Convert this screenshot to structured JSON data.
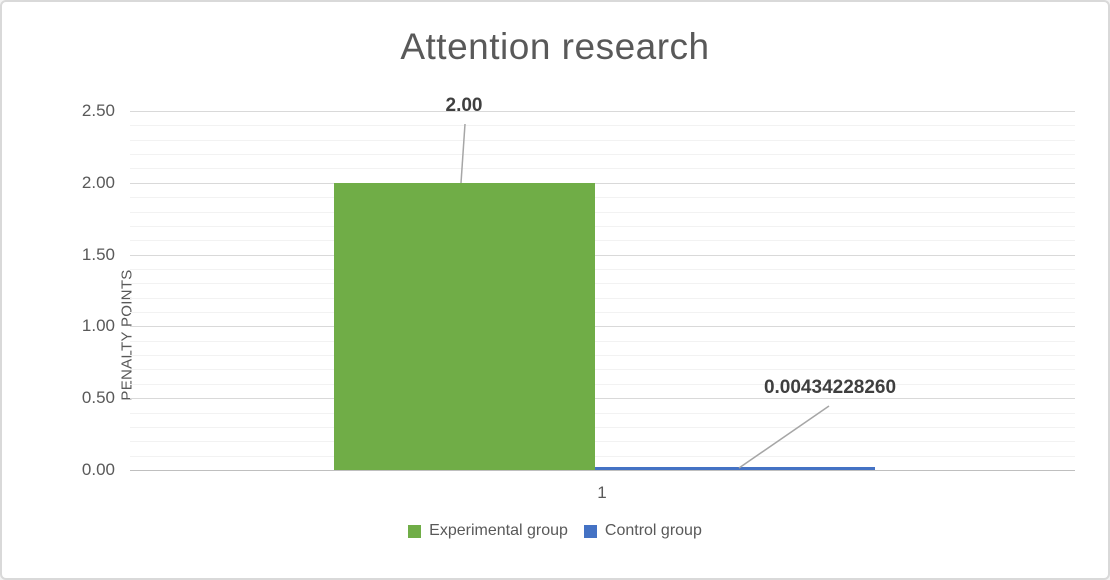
{
  "chart_data": {
    "type": "bar",
    "title": "Attention research",
    "categories": [
      "1"
    ],
    "series": [
      {
        "name": "Experimental group",
        "values": [
          2.0
        ],
        "data_label": "2.00",
        "color": "#70AD47"
      },
      {
        "name": "Control group",
        "values": [
          0.0043422826
        ],
        "data_label": "0.00434228260",
        "color": "#4472C4"
      }
    ],
    "xlabel": "",
    "ylabel": "PENALTY POINTS",
    "ylim": [
      0,
      2.5
    ],
    "y_major_unit": 0.5,
    "y_minor_unit": 0.1,
    "y_tick_labels": [
      "0.00",
      "0.50",
      "1.00",
      "1.50",
      "2.00",
      "2.50"
    ],
    "grid": "horizontal major+minor",
    "legend_position": "bottom",
    "colors": {
      "title_text": "#595959",
      "axis_text": "#595959",
      "data_label_text": "#3f3f3f",
      "major_gridline": "#d9d9d9",
      "minor_gridline": "#f2f2f2",
      "leader_line": "#a6a6a6"
    }
  }
}
